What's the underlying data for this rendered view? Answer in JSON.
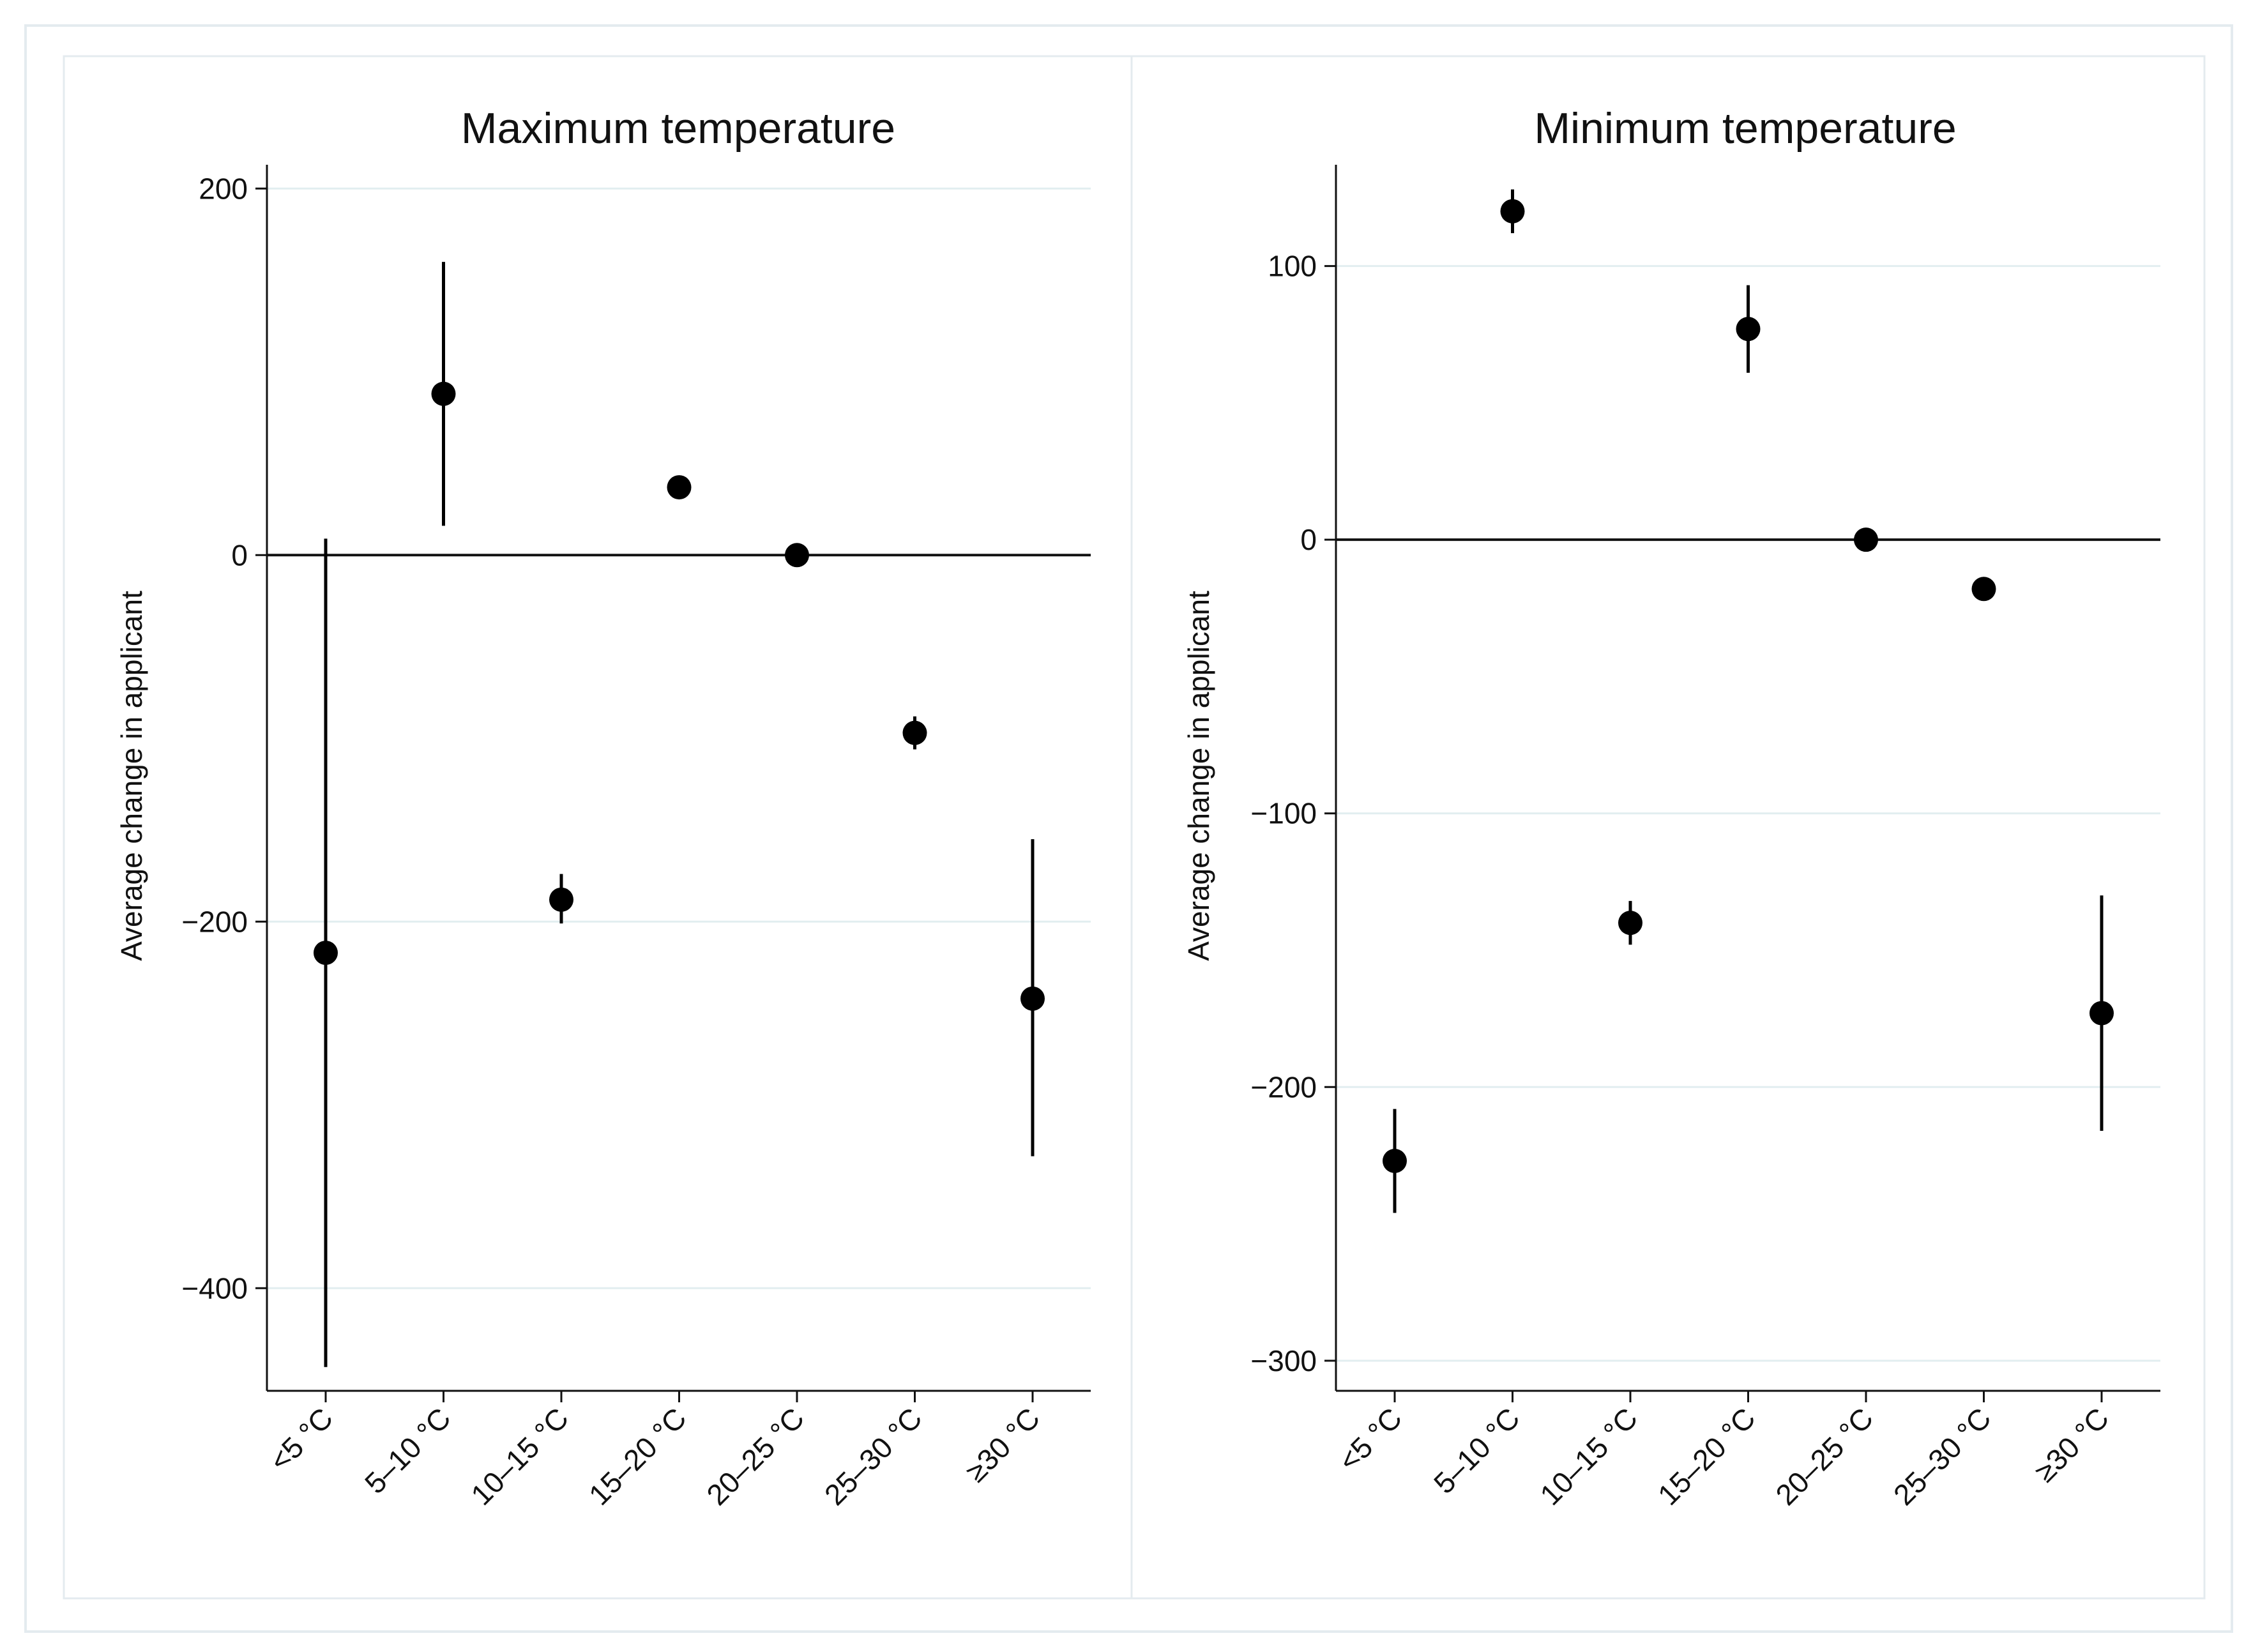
{
  "chart_data": [
    {
      "type": "scatter",
      "subtype": "point-estimate-with-confidence-interval",
      "title": "Maximum temperature",
      "xlabel": "",
      "ylabel": "Average change in applicant",
      "categories": [
        "<5 °C",
        "5–10 °C",
        "10–15 °C",
        "15–20 °C",
        "20–25 °C",
        "25–30 °C",
        "≥30 °C"
      ],
      "values": [
        -217,
        88,
        -188,
        37,
        0,
        -97,
        -242
      ],
      "ci_lower": [
        -443,
        16,
        -201,
        37,
        0,
        -106,
        -328
      ],
      "ci_upper": [
        9,
        160,
        -174,
        37,
        0,
        -88,
        -155
      ],
      "yticks": [
        200,
        0,
        -200,
        -400
      ],
      "ytick_labels": [
        "200",
        "0",
        "−200",
        "−400"
      ],
      "ylim": [
        -456,
        213
      ],
      "reference_line": 0,
      "grid": true
    },
    {
      "type": "scatter",
      "subtype": "point-estimate-with-confidence-interval",
      "title": "Minimum temperature",
      "xlabel": "",
      "ylabel": "Average change in applicant",
      "categories": [
        "<5 °C",
        "5–10 °C",
        "10–15 °C",
        "15–20 °C",
        "20–25 °C",
        "25–30 °C",
        "≥30 °C"
      ],
      "values": [
        -227,
        120,
        -140,
        77,
        0,
        -18,
        -173
      ],
      "ci_lower": [
        -246,
        112,
        -148,
        61,
        0,
        -18,
        -216
      ],
      "ci_upper": [
        -208,
        128,
        -132,
        93,
        0,
        -18,
        -130
      ],
      "yticks": [
        100,
        0,
        -100,
        -200,
        -300
      ],
      "ytick_labels": [
        "100",
        "0",
        "−100",
        "−200",
        "−300"
      ],
      "ylim": [
        -311,
        137
      ],
      "reference_line": 0,
      "grid": true
    }
  ]
}
